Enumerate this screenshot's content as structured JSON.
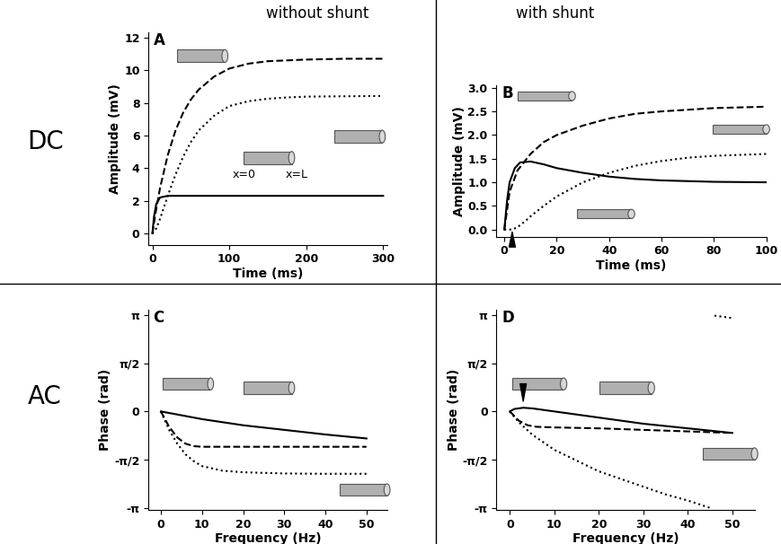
{
  "figure_texts": {
    "row_labels": [
      "DC",
      "AC"
    ],
    "column_labels": [
      "without shunt",
      "with shunt"
    ]
  },
  "chart_data": [
    {
      "type": "line",
      "title": "A",
      "x_label": "Time (ms)",
      "y_label": "Amplitude (mV)",
      "xlim": [
        -5,
        305
      ],
      "ylim": [
        -0.7,
        12.3
      ],
      "xticks": [
        0,
        100,
        200,
        300
      ],
      "yticks": [
        0,
        2,
        4,
        6,
        8,
        10,
        12
      ],
      "annotations": [
        "x=0",
        "x=L"
      ],
      "series": [
        {
          "color": "#000000",
          "line_style": "dashed",
          "x": [
            0,
            5,
            10,
            20,
            30,
            40,
            50,
            60,
            80,
            100,
            125,
            150,
            175,
            200,
            250,
            300
          ],
          "values": [
            0,
            1.5,
            2.8,
            4.8,
            6.3,
            7.4,
            8.2,
            8.8,
            9.6,
            10.1,
            10.4,
            10.55,
            10.6,
            10.65,
            10.7,
            10.7
          ]
        },
        {
          "color": "#000000",
          "line_style": "dotted",
          "x": [
            0,
            5,
            10,
            20,
            30,
            40,
            50,
            60,
            80,
            100,
            125,
            150,
            175,
            200,
            250,
            300
          ],
          "values": [
            0,
            0.3,
            0.9,
            2.3,
            3.6,
            4.7,
            5.6,
            6.3,
            7.2,
            7.8,
            8.1,
            8.25,
            8.33,
            8.38,
            8.4,
            8.42
          ]
        },
        {
          "color": "#000000",
          "line_style": "solid",
          "x": [
            0,
            2,
            5,
            10,
            20,
            300
          ],
          "values": [
            0,
            1.0,
            1.8,
            2.2,
            2.3,
            2.3
          ]
        }
      ]
    },
    {
      "type": "line",
      "title": "B",
      "x_label": "Time (ms)",
      "y_label": "Amplitude (mV)",
      "xlim": [
        -3,
        100
      ],
      "ylim": [
        -0.15,
        3.05
      ],
      "xticks": [
        0,
        20,
        40,
        60,
        80,
        100
      ],
      "yticks": [
        {
          "value": 0,
          "label": "0.0"
        },
        {
          "value": 0.5,
          "label": "0.5"
        },
        {
          "value": 1,
          "label": "1.0"
        },
        {
          "value": 1.5,
          "label": "1.5"
        },
        {
          "value": 2,
          "label": "2.0"
        },
        {
          "value": 2.5,
          "label": "2.5"
        },
        {
          "value": 3,
          "label": "3.0"
        }
      ],
      "arrowhead": {
        "x": 3,
        "y": 0
      },
      "series": [
        {
          "color": "#000000",
          "line_style": "dashed",
          "x": [
            0,
            2,
            5,
            10,
            15,
            20,
            30,
            40,
            50,
            60,
            80,
            100
          ],
          "values": [
            0,
            0.8,
            1.25,
            1.6,
            1.85,
            2.0,
            2.2,
            2.35,
            2.45,
            2.5,
            2.57,
            2.6
          ]
        },
        {
          "color": "#000000",
          "line_style": "solid",
          "x": [
            0,
            1,
            2,
            4,
            6,
            10,
            15,
            20,
            30,
            40,
            50,
            60,
            80,
            100
          ],
          "values": [
            0,
            0.6,
            1.0,
            1.3,
            1.42,
            1.44,
            1.38,
            1.3,
            1.2,
            1.12,
            1.07,
            1.04,
            1.01,
            1.0
          ]
        },
        {
          "color": "#000000",
          "line_style": "dotted",
          "x": [
            0,
            3,
            5,
            8,
            10,
            15,
            20,
            30,
            40,
            50,
            60,
            70,
            80,
            100
          ],
          "values": [
            0,
            0.0,
            0.05,
            0.18,
            0.28,
            0.5,
            0.7,
            1.0,
            1.2,
            1.35,
            1.45,
            1.52,
            1.56,
            1.6
          ]
        }
      ]
    },
    {
      "type": "line",
      "title": "C",
      "x_label": "Frequency (Hz)",
      "y_label": "Phase (rad)",
      "xlim": [
        -3,
        55
      ],
      "ylim": [
        -3.2,
        3.3
      ],
      "xticks": [
        0,
        10,
        20,
        30,
        40,
        50
      ],
      "yticks": [
        {
          "value": -3.1416,
          "label": "-π"
        },
        {
          "value": -1.5708,
          "label": "-π/2"
        },
        0,
        {
          "value": 1.5708,
          "label": "π/2"
        },
        {
          "value": 3.1416,
          "label": "π"
        }
      ],
      "series": [
        {
          "color": "#000000",
          "line_style": "solid",
          "x": [
            0,
            10,
            20,
            30,
            40,
            50
          ],
          "values": [
            0,
            -0.25,
            -0.45,
            -0.6,
            -0.75,
            -0.88
          ]
        },
        {
          "color": "#000000",
          "line_style": "dashed",
          "x": [
            0,
            2,
            4,
            6,
            8,
            10,
            20,
            30,
            40,
            50
          ],
          "values": [
            0,
            -0.5,
            -0.85,
            -1.05,
            -1.13,
            -1.15,
            -1.15,
            -1.15,
            -1.15,
            -1.15
          ]
        },
        {
          "color": "#000000",
          "line_style": "dotted",
          "x": [
            0,
            2,
            4,
            6,
            8,
            10,
            15,
            20,
            30,
            40,
            50
          ],
          "values": [
            0,
            -0.6,
            -1.05,
            -1.4,
            -1.62,
            -1.78,
            -1.93,
            -1.98,
            -2.02,
            -2.03,
            -2.03
          ]
        }
      ]
    },
    {
      "type": "line",
      "title": "D",
      "x_label": "Frequency (Hz)",
      "y_label": "Phase (rad)",
      "xlim": [
        -3,
        55
      ],
      "ylim": [
        -3.2,
        3.3
      ],
      "xticks": [
        0,
        10,
        20,
        30,
        40,
        50
      ],
      "yticks": [
        {
          "value": -3.1416,
          "label": "-π"
        },
        {
          "value": -1.5708,
          "label": "-π/2"
        },
        0,
        {
          "value": 1.5708,
          "label": "π/2"
        },
        {
          "value": 3.1416,
          "label": "π"
        }
      ],
      "arrowhead": {
        "x": 3,
        "y": 0.25
      },
      "series": [
        {
          "color": "#000000",
          "line_style": "solid",
          "x": [
            0,
            1,
            3,
            5,
            10,
            20,
            30,
            40,
            50
          ],
          "values": [
            0,
            0.08,
            0.12,
            0.1,
            0.0,
            -0.2,
            -0.4,
            -0.55,
            -0.7
          ]
        },
        {
          "color": "#000000",
          "line_style": "dashed",
          "x": [
            0,
            2,
            4,
            6,
            10,
            20,
            30,
            40,
            50
          ],
          "values": [
            0,
            -0.3,
            -0.45,
            -0.5,
            -0.52,
            -0.55,
            -0.6,
            -0.65,
            -0.7
          ]
        },
        {
          "color": "#000000",
          "line_style": "dotted",
          "x": [
            0,
            2,
            5,
            10,
            15,
            20,
            25,
            30,
            35,
            40,
            45,
            45.5,
            46,
            48,
            50
          ],
          "values": [
            0,
            -0.35,
            -0.75,
            -1.25,
            -1.6,
            -1.95,
            -2.2,
            -2.45,
            -2.7,
            -2.9,
            -3.14,
            null,
            3.12,
            3.08,
            3.04
          ]
        }
      ]
    }
  ]
}
